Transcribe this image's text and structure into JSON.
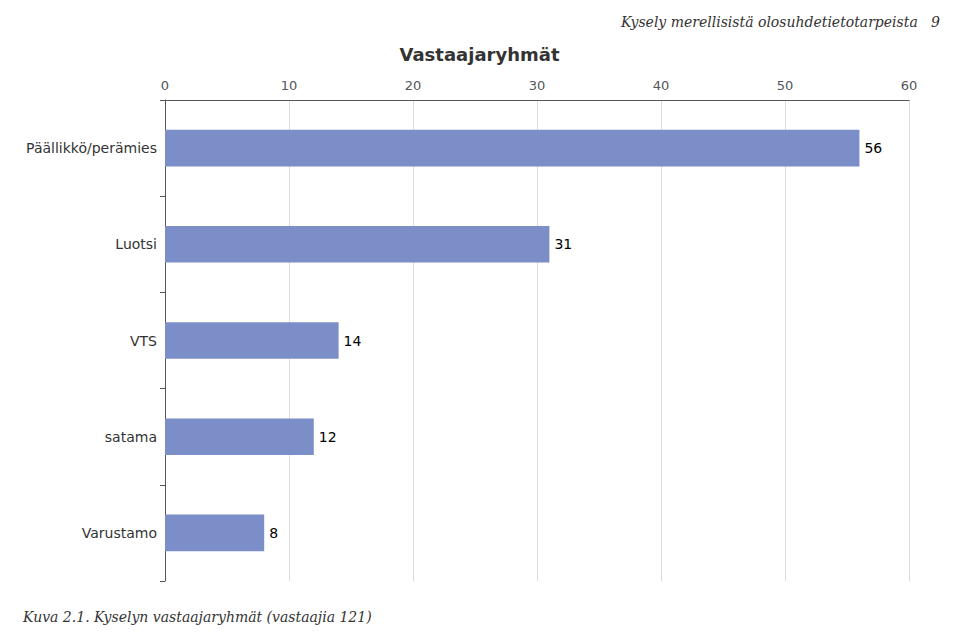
{
  "chart_data": {
    "type": "bar",
    "orientation": "horizontal",
    "title": "Vastaajaryhmät",
    "annotations": [
      "Kysely merellisistä olosuhdetietotarpeista   9",
      "Kuva 2.1. Kyselyn vastaajaryhmät (vastaajia 121)"
    ],
    "categories": [
      "Päällikkö/perämies",
      "Luotsi",
      "VTS",
      "satama",
      "Varustamo"
    ],
    "values": [
      56,
      31,
      14,
      12,
      8
    ],
    "color": "#7b8ec8",
    "xlim": [
      0,
      60
    ],
    "xticks": [
      0,
      10,
      20,
      30,
      40,
      50,
      60
    ],
    "grid": true,
    "data_labels": true
  }
}
